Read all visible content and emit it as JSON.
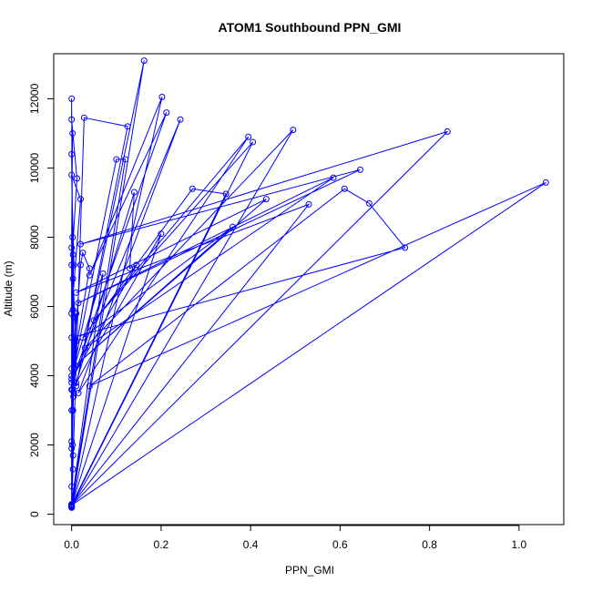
{
  "chart_data": {
    "type": "line",
    "title": "ATOM1 Southbound PPN_GMI",
    "xlabel": "PPN_GMI",
    "ylabel": "Altitude (m)",
    "xlim": [
      -0.04,
      1.1
    ],
    "ylim": [
      -300,
      13300
    ],
    "xticks": [
      0.0,
      0.2,
      0.4,
      0.6,
      0.8,
      1.0
    ],
    "xtick_labels": [
      "0.0",
      "0.2",
      "0.4",
      "0.6",
      "0.8",
      "1.0"
    ],
    "yticks": [
      0,
      2000,
      4000,
      6000,
      8000,
      10000,
      12000
    ],
    "ytick_labels": [
      "0",
      "2000",
      "4000",
      "6000",
      "8000",
      "10000",
      "12000"
    ],
    "grid": false,
    "legend": "none",
    "series": [
      {
        "color": "#0000ff",
        "marker": "open-circle",
        "points": [
          [
            0.0,
            200
          ],
          [
            0.003,
            1300
          ],
          [
            0.0,
            2100
          ],
          [
            0.003,
            3000
          ],
          [
            0.002,
            3600
          ],
          [
            0.003,
            5900
          ],
          [
            0.0,
            7200
          ],
          [
            0.012,
            9700
          ],
          [
            0.0,
            11400
          ],
          [
            0.0,
            12000
          ],
          [
            0.002,
            8000
          ],
          [
            0.0,
            190
          ],
          [
            0.0,
            800
          ],
          [
            0.002,
            2000
          ],
          [
            0.004,
            3400
          ],
          [
            0.005,
            5700
          ],
          [
            0.003,
            7500
          ],
          [
            0.0,
            10400
          ],
          [
            0.002,
            11000
          ],
          [
            0.0,
            7700
          ],
          [
            0.0,
            200
          ],
          [
            0.003,
            1700
          ],
          [
            0.0,
            3000
          ],
          [
            0.005,
            3500
          ],
          [
            0.01,
            5000
          ],
          [
            0.003,
            6800
          ],
          [
            0.005,
            7200
          ],
          [
            0.0,
            9800
          ],
          [
            0.02,
            9100
          ],
          [
            0.0,
            5800
          ],
          [
            0.0,
            220
          ],
          [
            0.162,
            13100
          ],
          [
            0.01,
            3700
          ],
          [
            0.125,
            11200
          ],
          [
            0.028,
            11450
          ],
          [
            0.0,
            240
          ],
          [
            0.202,
            12050
          ],
          [
            0.04,
            6900
          ],
          [
            0.212,
            11600
          ],
          [
            0.0,
            3800
          ],
          [
            0.243,
            11400
          ],
          [
            0.015,
            3500
          ],
          [
            0.395,
            10900
          ],
          [
            0.05,
            5600
          ],
          [
            0.405,
            10750
          ],
          [
            0.0,
            250
          ],
          [
            0.495,
            11100
          ],
          [
            0.03,
            4800
          ],
          [
            0.585,
            9720
          ],
          [
            0.015,
            6100
          ],
          [
            0.645,
            9950
          ],
          [
            0.02,
            7800
          ],
          [
            0.84,
            11050
          ],
          [
            0.0,
            260
          ],
          [
            1.06,
            9580
          ],
          [
            0.04,
            3700
          ],
          [
            0.61,
            9400
          ],
          [
            0.665,
            8980
          ],
          [
            0.745,
            7700
          ],
          [
            0.0,
            5100
          ],
          [
            0.0,
            270
          ],
          [
            0.53,
            8950
          ],
          [
            0.01,
            6400
          ],
          [
            0.435,
            9100
          ],
          [
            0.0,
            4200
          ],
          [
            0.36,
            8300
          ],
          [
            0.025,
            5100
          ],
          [
            0.27,
            9400
          ],
          [
            0.345,
            9250
          ],
          [
            0.0,
            280
          ],
          [
            0.2,
            8100
          ],
          [
            0.01,
            3800
          ],
          [
            0.14,
            9300
          ],
          [
            0.13,
            7100
          ],
          [
            0.145,
            7200
          ],
          [
            0.0,
            3900
          ],
          [
            0.1,
            10250
          ],
          [
            0.12,
            10250
          ],
          [
            0.0,
            290
          ],
          [
            0.07,
            6950
          ],
          [
            0.0,
            4000
          ],
          [
            0.04,
            7100
          ],
          [
            0.025,
            7550
          ],
          [
            0.02,
            7200
          ],
          [
            0.0,
            3600
          ],
          [
            0.01,
            5800
          ],
          [
            0.0,
            1900
          ]
        ]
      }
    ]
  }
}
